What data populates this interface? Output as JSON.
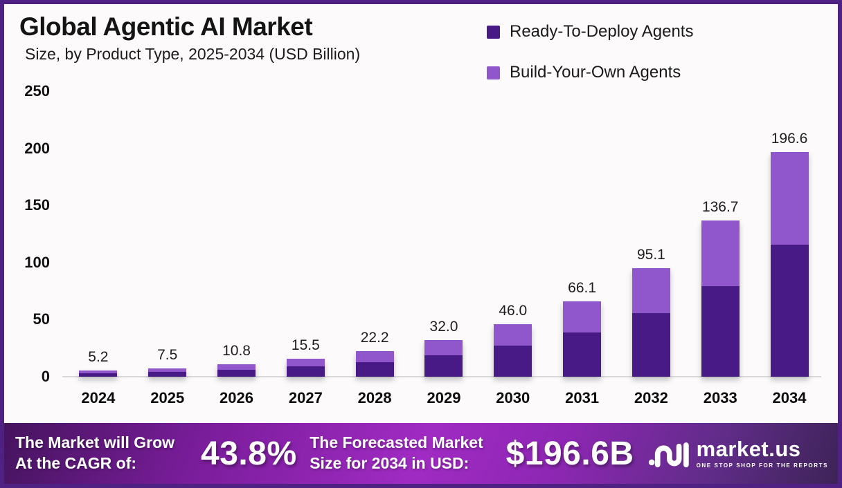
{
  "header": {
    "title": "Global Agentic AI Market",
    "subtitle": "Size, by Product Type, 2025-2034 (USD Billion)"
  },
  "legend": {
    "items": [
      {
        "label": "Ready-To-Deploy Agents",
        "color": "#471A85"
      },
      {
        "label": "Build-Your-Own Agents",
        "color": "#9057CD"
      }
    ]
  },
  "chart_data": {
    "type": "bar",
    "stacked": true,
    "title": "Global Agentic AI Market Size, by Product Type, 2025-2034 (USD Billion)",
    "xlabel": "",
    "ylabel": "USD Billion",
    "ylim": [
      0,
      250
    ],
    "yticks": [
      250,
      200,
      150,
      100,
      50,
      0
    ],
    "grid": false,
    "legend_position": "top-right",
    "categories": [
      "2024",
      "2025",
      "2026",
      "2027",
      "2028",
      "2029",
      "2030",
      "2031",
      "2032",
      "2033",
      "2034"
    ],
    "series": [
      {
        "name": "Ready-To-Deploy Agents",
        "color": "#471A85",
        "values": [
          3.0,
          4.4,
          6.3,
          9.1,
          13.0,
          18.8,
          27.0,
          39.0,
          55.5,
          79.5,
          115.5
        ],
        "note": "estimated from bar segment heights"
      },
      {
        "name": "Build-Your-Own Agents",
        "color": "#9057CD",
        "values": [
          2.2,
          3.1,
          4.5,
          6.4,
          9.2,
          13.2,
          19.0,
          27.1,
          39.6,
          57.2,
          81.1
        ],
        "note": "estimated from bar segment heights"
      }
    ],
    "totals": [
      5.2,
      7.5,
      10.8,
      15.5,
      22.2,
      32.0,
      46.0,
      66.1,
      95.1,
      136.7,
      196.6
    ],
    "total_labels": [
      "5.2",
      "7.5",
      "10.8",
      "15.5",
      "22.2",
      "32.0",
      "46.0",
      "66.1",
      "95.1",
      "136.7",
      "196.6"
    ]
  },
  "footer": {
    "cagr_label": "The Market will Grow\nAt the CAGR of:",
    "cagr_value": "43.8%",
    "forecast_label": "The Forecasted Market\nSize for 2034 in USD:",
    "forecast_value": "$196.6B",
    "brand": "market.us",
    "tagline": "ONE STOP SHOP FOR THE REPORTS"
  },
  "colors": {
    "border": "#4E2183",
    "background": "#FCFAFA",
    "axis_line": "#d9d9d9",
    "band_mid": "#A02BC3"
  }
}
